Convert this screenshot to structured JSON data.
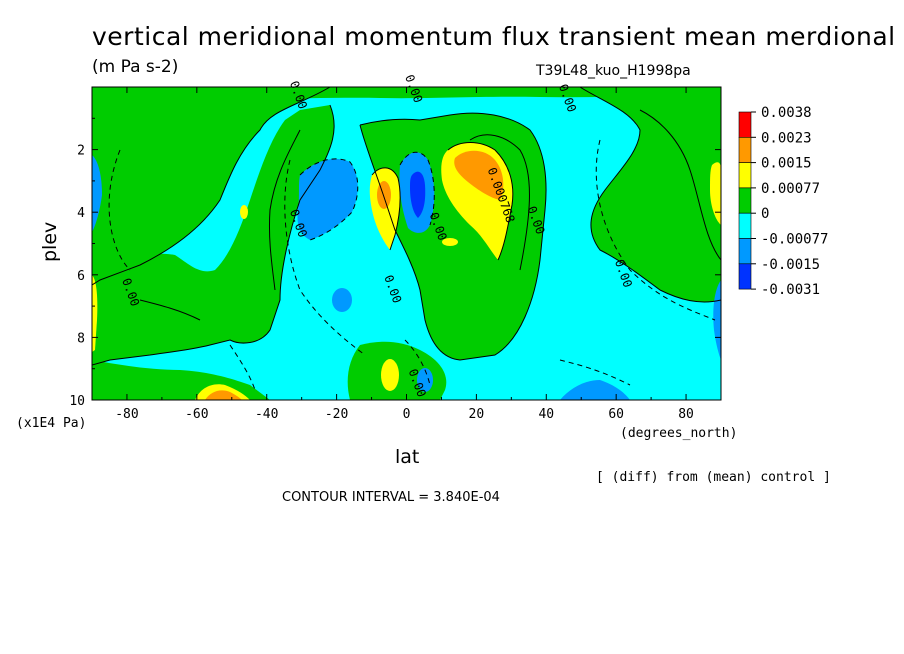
{
  "header": {
    "title": "vertical meridional momentum flux transient mean merdional",
    "units": "(m Pa s-2)",
    "run_name": "T39L48_kuo_H1998pa"
  },
  "footer": {
    "y_units": "(x1E4 Pa)",
    "x_units": "(degrees_north)",
    "diff_note": "[ (diff) from (mean) control ]",
    "contour_interval": "CONTOUR INTERVAL = 3.840E-04"
  },
  "chart_data": {
    "type": "heatmap",
    "title": "vertical meridional momentum flux transient mean merdional",
    "xlabel": "lat",
    "ylabel": "plev",
    "xlim": [
      -90,
      90
    ],
    "ylim": [
      10,
      0
    ],
    "x_ticks": [
      -80,
      -60,
      -40,
      -20,
      0,
      20,
      40,
      60,
      80
    ],
    "y_ticks": [
      2,
      4,
      6,
      8,
      10
    ],
    "contour_interval": 0.000384,
    "colorbar": {
      "levels": [
        "0.0038",
        "0.0023",
        "0.0015",
        "0.00077",
        "0",
        "-0.00077",
        "-0.0015",
        "-0.0031"
      ],
      "colors": [
        "#ff0000",
        "#ff9900",
        "#ffff00",
        "#00cc00",
        "#00ffff",
        "#0099ff",
        "#0033ff"
      ]
    },
    "contour_labels": [
      {
        "text": "0.00",
        "lat": -32,
        "plev": 4.4
      },
      {
        "text": "0.00",
        "lat": -80,
        "plev": 6.6
      },
      {
        "text": "0.00",
        "lat": -5,
        "plev": 6.5
      },
      {
        "text": "0.00",
        "lat": 8,
        "plev": 4.5
      },
      {
        "text": "0.00",
        "lat": 36,
        "plev": 4.3
      },
      {
        "text": "0.00",
        "lat": 61,
        "plev": 6.0
      },
      {
        "text": "0.00",
        "lat": 1,
        "plev": 0.1
      },
      {
        "text": "0.00",
        "lat": -32,
        "plev": 0.3
      },
      {
        "text": "0.00",
        "lat": 45,
        "plev": 0.4
      },
      {
        "text": "0.000768",
        "lat": 26,
        "plev": 3.5
      },
      {
        "text": "0.00",
        "lat": 2,
        "plev": 9.5
      }
    ],
    "field_regions": {
      "background": {
        "level": "0 to -0.00077",
        "color": "#00ffff"
      },
      "positive_band": {
        "level": "0 to 0.00077",
        "color": "#00cc00"
      },
      "max_region": {
        "lat": 22,
        "plev": 3.2,
        "level": "0.0015 to 0.0023"
      },
      "min_region": {
        "lat": 3,
        "plev": 3.8,
        "level": "-0.0015 to -0.0031"
      }
    }
  }
}
